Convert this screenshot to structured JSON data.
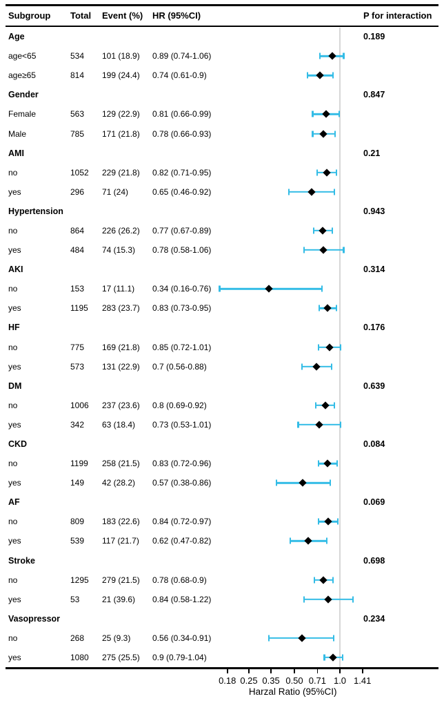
{
  "header": {
    "subgroup": "Subgroup",
    "total": "Total",
    "event": "Event (%)",
    "hr": "HR (95%CI)",
    "p_interaction": "P for interaction"
  },
  "axis": {
    "label": "Harzal Ratio (95%CI)",
    "tick_labels": [
      "0.18",
      "0.25",
      "0.35",
      "0.50",
      "0.71",
      "1.0",
      "1.41"
    ],
    "tick_values": [
      0.18,
      0.25,
      0.35,
      0.5,
      0.71,
      1.0,
      1.41
    ],
    "reference_value": 1.0,
    "scale": "log"
  },
  "colors": {
    "ci_bar": "#33bce6",
    "marker": "#000000",
    "reference_line": "#d7d7d7"
  },
  "chart_data": {
    "type": "forest",
    "title": "",
    "xlabel": "Harzal Ratio (95%CI)",
    "x_ticks": [
      0.18,
      0.25,
      0.35,
      0.5,
      0.71,
      1.0,
      1.41
    ],
    "groups": [
      {
        "name": "Age",
        "p_interaction": "0.189",
        "rows": [
          {
            "label": "age<65",
            "total": "534",
            "event": "101 (18.9)",
            "hr_text": "0.89 (0.74-1.06)",
            "hr": 0.89,
            "lo": 0.74,
            "hi": 1.06
          },
          {
            "label": "age≥65",
            "total": "814",
            "event": "199 (24.4)",
            "hr_text": "0.74 (0.61-0.9)",
            "hr": 0.74,
            "lo": 0.61,
            "hi": 0.9
          }
        ]
      },
      {
        "name": "Gender",
        "p_interaction": "0.847",
        "rows": [
          {
            "label": "Female",
            "total": "563",
            "event": "129 (22.9)",
            "hr_text": "0.81 (0.66-0.99)",
            "hr": 0.81,
            "lo": 0.66,
            "hi": 0.99
          },
          {
            "label": "Male",
            "total": "785",
            "event": "171 (21.8)",
            "hr_text": "0.78 (0.66-0.93)",
            "hr": 0.78,
            "lo": 0.66,
            "hi": 0.93
          }
        ]
      },
      {
        "name": "AMI",
        "p_interaction": "0.21",
        "rows": [
          {
            "label": "no",
            "total": "1052",
            "event": "229 (21.8)",
            "hr_text": "0.82 (0.71-0.95)",
            "hr": 0.82,
            "lo": 0.71,
            "hi": 0.95
          },
          {
            "label": "yes",
            "total": "296",
            "event": "71 (24)",
            "hr_text": "0.65 (0.46-0.92)",
            "hr": 0.65,
            "lo": 0.46,
            "hi": 0.92
          }
        ]
      },
      {
        "name": "Hypertension",
        "p_interaction": "0.943",
        "rows": [
          {
            "label": "no",
            "total": "864",
            "event": "226 (26.2)",
            "hr_text": "0.77 (0.67-0.89)",
            "hr": 0.77,
            "lo": 0.67,
            "hi": 0.89
          },
          {
            "label": "yes",
            "total": "484",
            "event": "74 (15.3)",
            "hr_text": "0.78 (0.58-1.06)",
            "hr": 0.78,
            "lo": 0.58,
            "hi": 1.06
          }
        ]
      },
      {
        "name": "AKI",
        "p_interaction": "0.314",
        "rows": [
          {
            "label": "no",
            "total": "153",
            "event": "17 (11.1)",
            "hr_text": "0.34 (0.16-0.76)",
            "hr": 0.34,
            "lo": 0.16,
            "hi": 0.76
          },
          {
            "label": "yes",
            "total": "1195",
            "event": "283 (23.7)",
            "hr_text": "0.83 (0.73-0.95)",
            "hr": 0.83,
            "lo": 0.73,
            "hi": 0.95
          }
        ]
      },
      {
        "name": "HF",
        "p_interaction": "0.176",
        "rows": [
          {
            "label": "no",
            "total": "775",
            "event": "169 (21.8)",
            "hr_text": "0.85 (0.72-1.01)",
            "hr": 0.85,
            "lo": 0.72,
            "hi": 1.01
          },
          {
            "label": "yes",
            "total": "573",
            "event": "131 (22.9)",
            "hr_text": "0.7 (0.56-0.88)",
            "hr": 0.7,
            "lo": 0.56,
            "hi": 0.88
          }
        ]
      },
      {
        "name": "DM",
        "p_interaction": "0.639",
        "rows": [
          {
            "label": "no",
            "total": "1006",
            "event": "237 (23.6)",
            "hr_text": "0.8 (0.69-0.92)",
            "hr": 0.8,
            "lo": 0.69,
            "hi": 0.92
          },
          {
            "label": "yes",
            "total": "342",
            "event": "63 (18.4)",
            "hr_text": "0.73 (0.53-1.01)",
            "hr": 0.73,
            "lo": 0.53,
            "hi": 1.01
          }
        ]
      },
      {
        "name": "CKD",
        "p_interaction": "0.084",
        "rows": [
          {
            "label": "no",
            "total": "1199",
            "event": "258 (21.5)",
            "hr_text": "0.83 (0.72-0.96)",
            "hr": 0.83,
            "lo": 0.72,
            "hi": 0.96
          },
          {
            "label": "yes",
            "total": "149",
            "event": "42 (28.2)",
            "hr_text": "0.57 (0.38-0.86)",
            "hr": 0.57,
            "lo": 0.38,
            "hi": 0.86
          }
        ]
      },
      {
        "name": "AF",
        "p_interaction": "0.069",
        "rows": [
          {
            "label": "no",
            "total": "809",
            "event": "183 (22.6)",
            "hr_text": "0.84 (0.72-0.97)",
            "hr": 0.84,
            "lo": 0.72,
            "hi": 0.97
          },
          {
            "label": "yes",
            "total": "539",
            "event": "117 (21.7)",
            "hr_text": "0.62 (0.47-0.82)",
            "hr": 0.62,
            "lo": 0.47,
            "hi": 0.82
          }
        ]
      },
      {
        "name": "Stroke",
        "p_interaction": "0.698",
        "rows": [
          {
            "label": "no",
            "total": "1295",
            "event": "279 (21.5)",
            "hr_text": "0.78 (0.68-0.9)",
            "hr": 0.78,
            "lo": 0.68,
            "hi": 0.9
          },
          {
            "label": "yes",
            "total": "53",
            "event": "21 (39.6)",
            "hr_text": "0.84 (0.58-1.22)",
            "hr": 0.84,
            "lo": 0.58,
            "hi": 1.22
          }
        ]
      },
      {
        "name": "Vasopressor",
        "p_interaction": "0.234",
        "rows": [
          {
            "label": "no",
            "total": "268",
            "event": "25 (9.3)",
            "hr_text": "0.56 (0.34-0.91)",
            "hr": 0.56,
            "lo": 0.34,
            "hi": 0.91
          },
          {
            "label": "yes",
            "total": "1080",
            "event": "275 (25.5)",
            "hr_text": "0.9 (0.79-1.04)",
            "hr": 0.9,
            "lo": 0.79,
            "hi": 1.04
          }
        ]
      }
    ]
  }
}
